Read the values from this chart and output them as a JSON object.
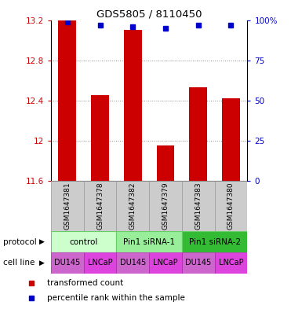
{
  "title": "GDS5805 / 8110450",
  "samples": [
    "GSM1647381",
    "GSM1647378",
    "GSM1647382",
    "GSM1647379",
    "GSM1647383",
    "GSM1647380"
  ],
  "bar_values": [
    13.2,
    12.45,
    13.1,
    11.95,
    12.53,
    12.42
  ],
  "dot_values": [
    99,
    97,
    96,
    95,
    97,
    97
  ],
  "ylim_left": [
    11.6,
    13.2
  ],
  "yticks_left": [
    11.6,
    12.0,
    12.4,
    12.8,
    13.2
  ],
  "ytick_labels_left": [
    "11.6",
    "12",
    "12.4",
    "12.8",
    "13.2"
  ],
  "ylim_right": [
    0,
    100
  ],
  "yticks_right": [
    0,
    25,
    50,
    75,
    100
  ],
  "ytick_labels_right": [
    "0",
    "25",
    "50",
    "75",
    "100%"
  ],
  "bar_color": "#cc0000",
  "dot_color": "#0000cc",
  "protocols": [
    {
      "label": "control",
      "span": [
        0,
        2
      ],
      "color": "#ccffcc",
      "border": "#66cc66"
    },
    {
      "label": "Pin1 siRNA-1",
      "span": [
        2,
        4
      ],
      "color": "#99ee99",
      "border": "#66cc66"
    },
    {
      "label": "Pin1 siRNA-2",
      "span": [
        4,
        6
      ],
      "color": "#33bb33",
      "border": "#66cc66"
    }
  ],
  "cell_line_labels": [
    "DU145",
    "LNCaP",
    "DU145",
    "LNCaP",
    "DU145",
    "LNCaP"
  ],
  "cell_line_colors": [
    "#cc66cc",
    "#dd44dd",
    "#cc66cc",
    "#dd44dd",
    "#cc66cc",
    "#dd44dd"
  ],
  "legend_items": [
    {
      "color": "#cc0000",
      "label": "transformed count"
    },
    {
      "color": "#0000cc",
      "label": "percentile rank within the sample"
    }
  ],
  "protocol_label": "protocol",
  "cellline_label": "cell line",
  "background_color": "#ffffff",
  "grid_color": "#888888",
  "sample_bg_color": "#cccccc",
  "sample_border_color": "#999999"
}
